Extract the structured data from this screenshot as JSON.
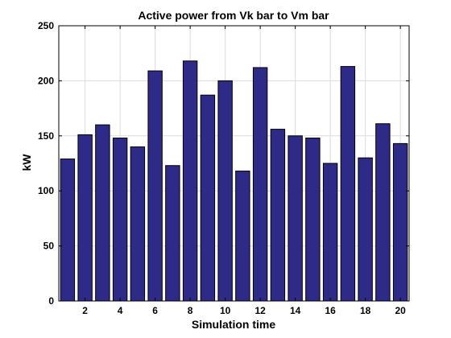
{
  "chart_data": {
    "type": "bar",
    "title": "Active power from Vk bar to Vm bar",
    "xlabel": "Simulation time",
    "ylabel": "kW",
    "x": [
      1,
      2,
      3,
      4,
      5,
      6,
      7,
      8,
      9,
      10,
      11,
      12,
      13,
      14,
      15,
      16,
      17,
      18,
      19,
      20
    ],
    "values": [
      129,
      151,
      160,
      148,
      140,
      209,
      123,
      218,
      187,
      200,
      118,
      212,
      156,
      150,
      148,
      125,
      213,
      130,
      161,
      143
    ],
    "xlim": [
      1,
      20
    ],
    "ylim": [
      0,
      250
    ],
    "xticks": [
      2,
      4,
      6,
      8,
      10,
      12,
      14,
      16,
      18,
      20
    ],
    "yticks": [
      0,
      50,
      100,
      150,
      200,
      250
    ],
    "grid": true,
    "bar_color": "#2e2a87"
  }
}
